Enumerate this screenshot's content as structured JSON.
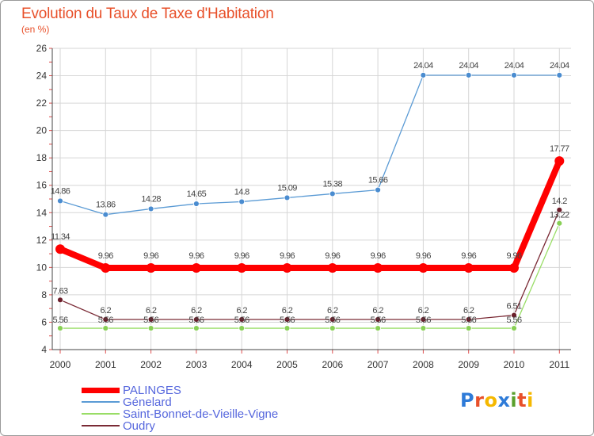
{
  "chart_data": {
    "type": "line",
    "title": "Evolution du Taux de Taxe d'Habitation",
    "ylabel": "(en %)",
    "xlabel": "",
    "x": [
      "2000",
      "2001",
      "2002",
      "2003",
      "2004",
      "2005",
      "2006",
      "2007",
      "2008",
      "2009",
      "2010",
      "2011"
    ],
    "ylim": [
      4,
      26
    ],
    "yticks": [
      "4",
      "6",
      "8",
      "10",
      "12",
      "14",
      "16",
      "18",
      "20",
      "22",
      "24",
      "26"
    ],
    "grid": true,
    "legend_position": "bottom-left",
    "series": [
      {
        "name": "PALINGES",
        "color": "#ff0000",
        "values": [
          11.34,
          9.96,
          9.96,
          9.96,
          9.96,
          9.96,
          9.96,
          9.96,
          9.96,
          9.96,
          9.96,
          17.77
        ],
        "labels": [
          "11.34",
          "9.96",
          "9.96",
          "9.96",
          "9.96",
          "9.96",
          "9.96",
          "9.96",
          "9.96",
          "9.96",
          "9.96",
          "17.77"
        ]
      },
      {
        "name": "Génelard",
        "color": "#5b9bd5",
        "values": [
          14.86,
          13.86,
          14.28,
          14.65,
          14.8,
          15.09,
          15.38,
          15.66,
          24.04,
          24.04,
          24.04,
          24.04
        ],
        "labels": [
          "14.86",
          "13.86",
          "14.28",
          "14.65",
          "14.8",
          "15.09",
          "15.38",
          "15.66",
          "24.04",
          "24.04",
          "24.04",
          "24.04"
        ]
      },
      {
        "name": "Saint-Bonnet-de-Vieille-Vigne",
        "color": "#99dd66",
        "values": [
          5.56,
          5.56,
          5.56,
          5.56,
          5.56,
          5.56,
          5.56,
          5.56,
          5.56,
          5.56,
          5.56,
          13.22
        ],
        "labels": [
          "5.56",
          "5.56",
          "5.56",
          "5.56",
          "5.56",
          "5.56",
          "5.56",
          "5.56",
          "5.56",
          "5.56",
          "5.56",
          "13.22"
        ]
      },
      {
        "name": "Oudry",
        "color": "#7a2a35",
        "values": [
          7.63,
          6.2,
          6.2,
          6.2,
          6.2,
          6.2,
          6.2,
          6.2,
          6.2,
          6.2,
          6.51,
          14.2
        ],
        "labels": [
          "7.63",
          "6.2",
          "6.2",
          "6.2",
          "6.2",
          "6.2",
          "6.2",
          "6.2",
          "6.2",
          "6.2",
          "6.51",
          "14.2"
        ]
      }
    ]
  },
  "logo": {
    "letters": [
      "P",
      "r",
      "o",
      "x",
      "i",
      "t",
      "i"
    ],
    "colors": [
      "#2e7bd8",
      "#e8502a",
      "#f5b800",
      "#2e7bd8",
      "#5aa02c",
      "#e8502a",
      "#f5b800"
    ]
  }
}
